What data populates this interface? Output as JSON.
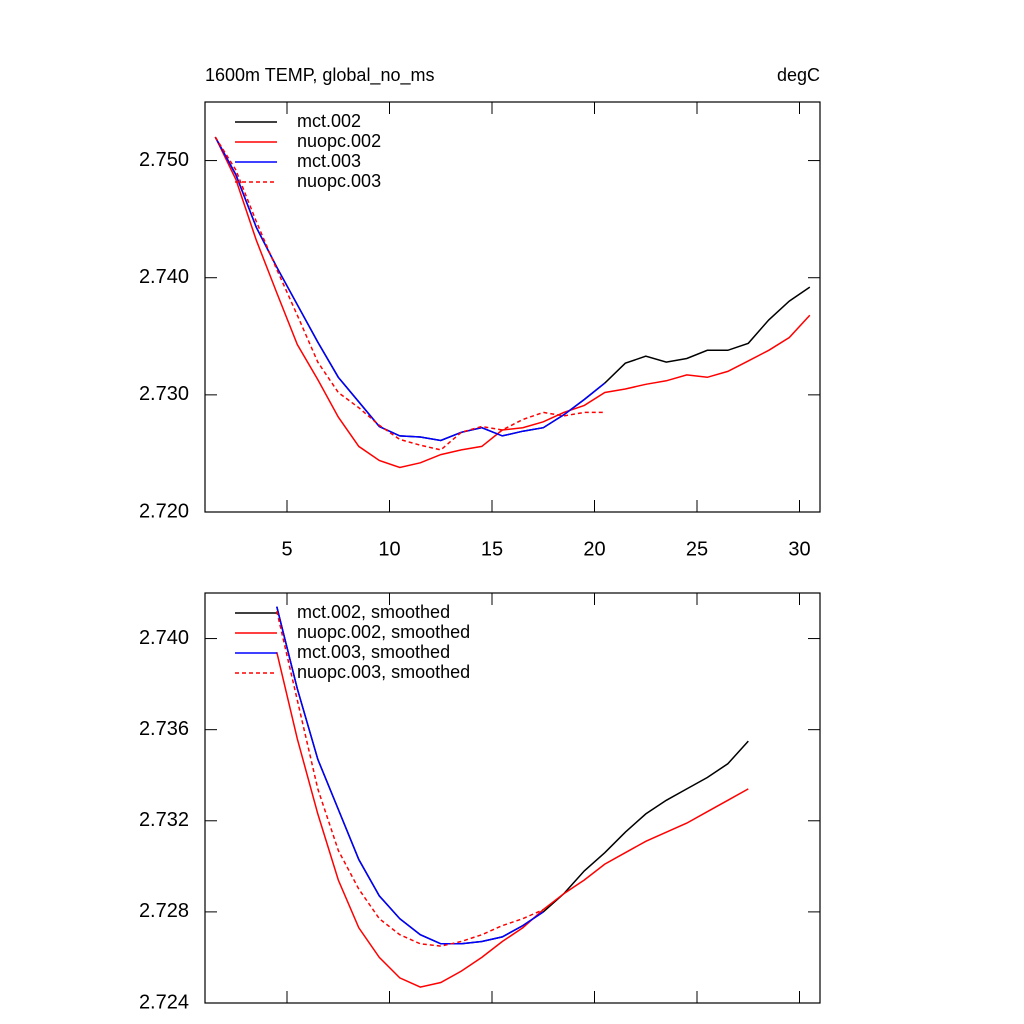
{
  "chart_data": [
    {
      "type": "line",
      "title": "1600m TEMP, global_no_ms",
      "units": "degC",
      "x": [
        1.5,
        2.5,
        3.5,
        4.5,
        5.5,
        6.5,
        7.5,
        8.5,
        9.5,
        10.5,
        11.5,
        12.5,
        13.5,
        14.5,
        15.5,
        16.5,
        17.5,
        18.5,
        19.5,
        20.5,
        21.5,
        22.5,
        23.5,
        24.5,
        25.5,
        26.5,
        27.5,
        28.5,
        29.5,
        30.5
      ],
      "series": [
        {
          "name": "mct.002",
          "color": "#000000",
          "style": "solid",
          "values": [
            2.752,
            2.7488,
            2.7443,
            2.7409,
            2.7377,
            2.7345,
            2.7315,
            2.7294,
            2.7273,
            2.7265,
            2.7264,
            2.7261,
            2.7268,
            2.7272,
            2.7265,
            2.7269,
            2.7272,
            2.7283,
            2.7296,
            2.731,
            2.7327,
            2.7333,
            2.7328,
            2.7331,
            2.7338,
            2.7338,
            2.7344,
            2.7364,
            2.738,
            2.7392
          ]
        },
        {
          "name": "nuopc.002",
          "color": "#ff0000",
          "style": "solid",
          "values": [
            2.752,
            2.7484,
            2.7432,
            2.7387,
            2.7343,
            2.7313,
            2.7281,
            2.7256,
            2.7244,
            2.7238,
            2.7242,
            2.7249,
            2.7253,
            2.7256,
            2.727,
            2.7272,
            2.7277,
            2.7285,
            2.7291,
            2.7302,
            2.7305,
            2.7309,
            2.7312,
            2.7317,
            2.7315,
            2.732,
            2.7329,
            2.7338,
            2.7349,
            2.7368
          ]
        },
        {
          "name": "mct.003",
          "color": "#0000ff",
          "style": "solid",
          "values": [
            2.752,
            2.7488,
            2.7443,
            2.7409,
            2.7377,
            2.7345,
            2.7315,
            2.7294,
            2.7273,
            2.7265,
            2.7264,
            2.7261,
            2.7268,
            2.7272,
            2.7265,
            2.7269,
            2.7272,
            2.7283,
            2.7296,
            2.731,
            null,
            null,
            null,
            null,
            null,
            null,
            null,
            null,
            null,
            null
          ]
        },
        {
          "name": "nuopc.003",
          "color": "#ff0000",
          "style": "dashed",
          "values": [
            2.752,
            2.7492,
            2.7448,
            2.7407,
            2.7368,
            2.7328,
            2.7302,
            2.7289,
            2.7274,
            2.7262,
            2.7257,
            2.7253,
            2.7268,
            2.7273,
            2.727,
            2.7279,
            2.7285,
            2.7282,
            2.7285,
            2.7285,
            null,
            null,
            null,
            null,
            null,
            null,
            null,
            null,
            null,
            null
          ]
        }
      ],
      "xlim": [
        1,
        31
      ],
      "xticks": [
        5,
        10,
        15,
        20,
        25,
        30
      ],
      "ylim": [
        2.72,
        2.755
      ],
      "yticks": [
        {
          "value": 2.72,
          "label": "2.720"
        },
        {
          "value": 2.73,
          "label": "2.730"
        },
        {
          "value": 2.74,
          "label": "2.740"
        },
        {
          "value": 2.75,
          "label": "2.750"
        }
      ],
      "legend": "upper left"
    },
    {
      "type": "line",
      "x": [
        4.5,
        5.5,
        6.5,
        7.5,
        8.5,
        9.5,
        10.5,
        11.5,
        12.5,
        13.5,
        14.5,
        15.5,
        16.5,
        17.5,
        18.5,
        19.5,
        20.5,
        21.5,
        22.5,
        23.5,
        24.5,
        25.5,
        26.5,
        27.5
      ],
      "series": [
        {
          "name": "mct.002, smoothed",
          "color": "#000000",
          "style": "solid",
          "values": [
            2.7414,
            2.7378,
            2.7347,
            2.7325,
            2.7303,
            2.7287,
            2.7277,
            2.727,
            2.7266,
            2.7266,
            2.7267,
            2.7269,
            2.7274,
            2.728,
            2.7288,
            2.7298,
            2.7306,
            2.7315,
            2.7323,
            2.7329,
            2.7334,
            2.7339,
            2.7345,
            2.7355
          ]
        },
        {
          "name": "nuopc.002, smoothed",
          "color": "#ff0000",
          "style": "solid",
          "values": [
            2.7394,
            2.7356,
            2.7323,
            2.7294,
            2.7273,
            2.726,
            2.7251,
            2.7247,
            2.7249,
            2.7254,
            2.726,
            2.7267,
            2.7273,
            2.7281,
            2.7288,
            2.7294,
            2.7301,
            2.7306,
            2.7311,
            2.7315,
            2.7319,
            2.7324,
            2.7329,
            2.7334
          ]
        },
        {
          "name": "mct.003, smoothed",
          "color": "#0000ff",
          "style": "solid",
          "values": [
            2.7414,
            2.7378,
            2.7347,
            2.7325,
            2.7303,
            2.7287,
            2.7277,
            2.727,
            2.7266,
            2.7266,
            2.7267,
            2.7269,
            2.7274,
            2.728,
            null,
            null,
            null,
            null,
            null,
            null,
            null,
            null,
            null,
            null
          ]
        },
        {
          "name": "nuopc.003, smoothed",
          "color": "#ff0000",
          "style": "dashed",
          "values": [
            2.7412,
            2.7373,
            2.7334,
            2.7307,
            2.729,
            2.7277,
            2.727,
            2.7266,
            2.7265,
            2.7267,
            2.727,
            2.7274,
            2.7277,
            2.7281,
            null,
            null,
            null,
            null,
            null,
            null,
            null,
            null,
            null,
            null
          ]
        }
      ],
      "xlim": [
        1,
        31
      ],
      "xticks": [
        5,
        10,
        15,
        20,
        25,
        30
      ],
      "ylim": [
        2.724,
        2.742
      ],
      "yticks": [
        {
          "value": 2.724,
          "label": "2.724"
        },
        {
          "value": 2.728,
          "label": "2.728"
        },
        {
          "value": 2.732,
          "label": "2.732"
        },
        {
          "value": 2.736,
          "label": "2.736"
        },
        {
          "value": 2.74,
          "label": "2.740"
        }
      ],
      "legend": "upper left"
    }
  ]
}
